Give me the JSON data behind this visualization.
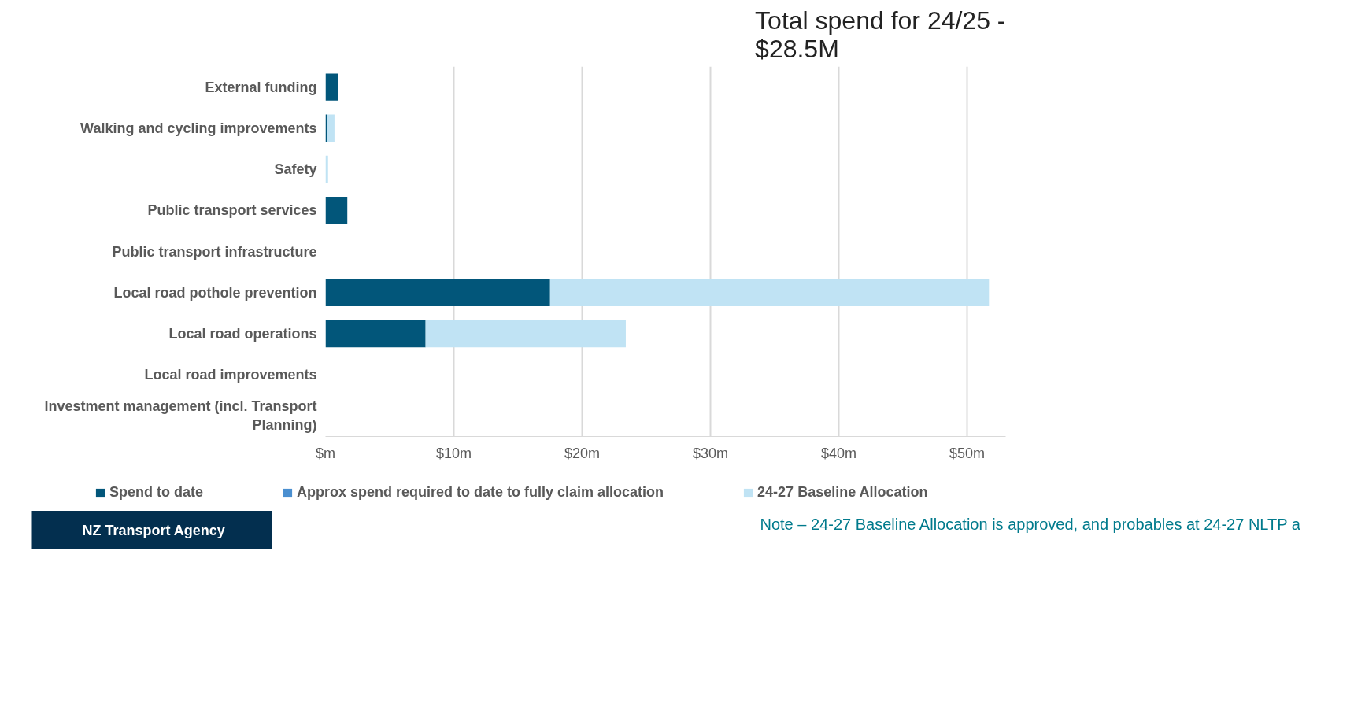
{
  "chart_data": {
    "type": "bar",
    "orientation": "horizontal",
    "stacked": true,
    "categories": [
      "External funding",
      "Walking and cycling improvements",
      "Safety",
      "Public transport services",
      "Public transport infrastructure",
      "Local road pothole prevention",
      "Local road operations",
      "Local road improvements",
      "Investment management (incl. Transport Planning)"
    ],
    "series": [
      {
        "name": "Spend to date",
        "color": "#02567a",
        "values": [
          1.0,
          0.15,
          0,
          1.7,
          0,
          17.5,
          7.8,
          0,
          0
        ]
      },
      {
        "name": "Approx spend required to date to fully claim allocation",
        "color": "#4a8fd0",
        "values": [
          0,
          0,
          null,
          0,
          0,
          0,
          0,
          0,
          0
        ]
      },
      {
        "name": "24-27 Baseline Allocation",
        "color": "#c0e3f4",
        "values": [
          null,
          0.55,
          0.2,
          0,
          0,
          34.2,
          15.6,
          0,
          0
        ]
      }
    ],
    "xlim": [
      0,
      53
    ],
    "xticks": [
      {
        "value": 0,
        "label": "$m"
      },
      {
        "value": 10,
        "label": "$10m"
      },
      {
        "value": 20,
        "label": "$20m"
      },
      {
        "value": 30,
        "label": "$30m"
      },
      {
        "value": 40,
        "label": "$40m"
      },
      {
        "value": 50,
        "label": "$50m"
      }
    ],
    "grid": "x",
    "legend": "bottom",
    "annotations": [
      "Total spend for 24/25 - $28.5M",
      "Note – 24-27 Baseline Allocation is approved, and probables at 24-27 NLTP a",
      "NZ Transport Agency"
    ]
  }
}
